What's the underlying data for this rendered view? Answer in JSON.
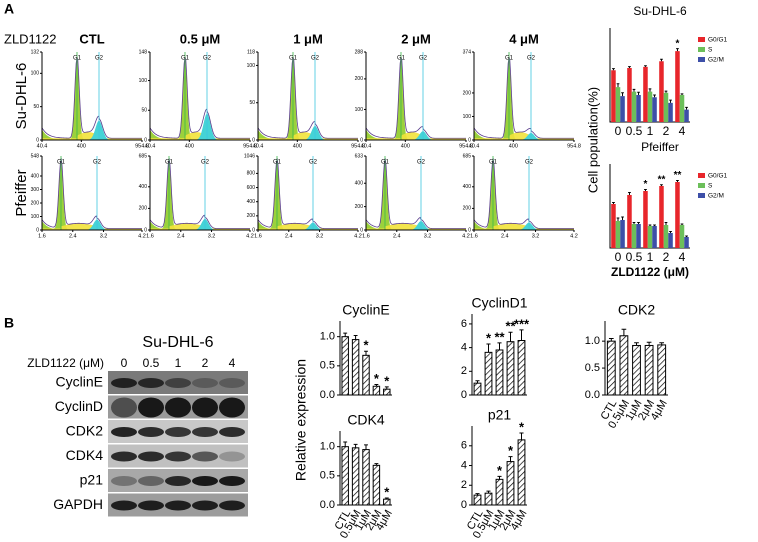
{
  "panel_labels": [
    "A",
    "B"
  ],
  "flow": {
    "drug_label": "ZLD1122",
    "doses": [
      "CTL",
      "0.5 μM",
      "1 μM",
      "2 μM",
      "4 μM"
    ],
    "rows": [
      {
        "name": "Su-DHL-6",
        "xticks": [
          "40.4",
          "400",
          "954.8"
        ],
        "peaks": [
          "G1",
          "G2"
        ],
        "yticks": [
          [
            "0",
            "50",
            "100",
            "132"
          ],
          [
            "0",
            "50",
            "100",
            "148"
          ],
          [
            "0",
            "50",
            "100",
            "118"
          ],
          [
            "0",
            "100",
            "200",
            "288"
          ],
          [
            "0",
            "100",
            "200",
            "374"
          ]
        ]
      },
      {
        "name": "Pfeiffer",
        "xticks": [
          "1.6",
          "2.4",
          "3.2",
          "4.2"
        ],
        "peaks": [
          "G1",
          "G2"
        ],
        "yticks": [
          [
            "0",
            "100",
            "200",
            "300",
            "400",
            "548"
          ],
          [
            "0",
            "200",
            "400",
            "685"
          ],
          [
            "0",
            "200",
            "400",
            "600",
            "800",
            "1046"
          ],
          [
            "0",
            "200",
            "400",
            "633"
          ],
          [
            "0",
            "200",
            "400",
            "685"
          ]
        ]
      }
    ]
  },
  "western": {
    "title": "Su-DHL-6",
    "dose_label": "ZLD1122 (μM)",
    "doses": [
      "0",
      "0.5",
      "1",
      "2",
      "4"
    ],
    "proteins": [
      "CyclinE",
      "CyclinD",
      "CDK2",
      "CDK4",
      "p21",
      "GAPDH"
    ]
  },
  "chart_data": [
    {
      "type": "bar",
      "title": "Su-DHL-6",
      "categories": [
        "0",
        "0.5",
        "1",
        "2",
        "4"
      ],
      "ylim": [
        0,
        80
      ],
      "y_label": "Cell population(%)",
      "series": [
        {
          "name": "G0/G1",
          "color": "#e8262b",
          "values": [
            46,
            48,
            49,
            54,
            63
          ],
          "errors": [
            1.5,
            1.2,
            1.0,
            1.8,
            2.2
          ],
          "significance": [
            null,
            null,
            null,
            null,
            "*"
          ]
        },
        {
          "name": "S",
          "color": "#6cbf5a",
          "values": [
            31,
            27,
            27,
            26,
            24
          ],
          "errors": [
            3,
            2,
            2.5,
            1.5,
            1
          ]
        },
        {
          "name": "G2/M",
          "color": "#3d4fa8",
          "values": [
            23,
            24,
            22,
            17,
            11
          ],
          "errors": [
            3,
            2.5,
            2,
            2.5,
            2
          ]
        }
      ]
    },
    {
      "type": "bar",
      "title": "Pfeiffer",
      "categories": [
        "0",
        "0.5",
        "1",
        "2",
        "4"
      ],
      "ylim": [
        0,
        80
      ],
      "x_label": "ZLD1122 (μM)",
      "series": [
        {
          "name": "G0/G1",
          "color": "#e8262b",
          "values": [
            44,
            53,
            57,
            62,
            66
          ],
          "errors": [
            1.5,
            2.5,
            1.5,
            1.2,
            1.5
          ],
          "significance": [
            null,
            null,
            "*",
            "**",
            "**"
          ]
        },
        {
          "name": "S",
          "color": "#6cbf5a",
          "values": [
            27,
            24,
            22,
            23,
            23
          ],
          "errors": [
            3,
            1.5,
            1,
            2.5,
            1
          ]
        },
        {
          "name": "G2/M",
          "color": "#3d4fa8",
          "values": [
            28,
            24,
            22,
            15,
            11
          ],
          "errors": [
            3,
            1.5,
            1,
            1.5,
            1
          ]
        }
      ]
    },
    {
      "type": "bar",
      "title": "CyclinE",
      "hatch": true,
      "y_label": "Relative expression",
      "values": [
        1.0,
        0.95,
        0.68,
        0.15,
        0.1
      ],
      "errors": [
        0.06,
        0.07,
        0.07,
        0.03,
        0.04
      ],
      "significance": [
        null,
        null,
        "*",
        "*",
        "*"
      ],
      "ylim": [
        0,
        1.2
      ],
      "yticks": [
        {
          "value": 0,
          "label": "0.0"
        },
        {
          "value": 0.5,
          "label": "0.5"
        },
        {
          "value": 1,
          "label": "1.0"
        }
      ]
    },
    {
      "type": "bar",
      "title": "CyclinD1",
      "hatch": true,
      "values": [
        1.0,
        3.6,
        3.8,
        4.5,
        4.6
      ],
      "errors": [
        0.2,
        0.7,
        0.6,
        0.8,
        0.9
      ],
      "significance": [
        null,
        "*",
        "**",
        "**",
        "***"
      ],
      "ylim": [
        0,
        6.5
      ],
      "yticks": [
        0,
        2,
        4,
        6
      ]
    },
    {
      "type": "bar",
      "title": "CDK2",
      "hatch": true,
      "categories": [
        "CTL",
        "0.5μM",
        "1μM",
        "2μM",
        "4μM"
      ],
      "values": [
        1.0,
        1.1,
        0.92,
        0.92,
        0.93
      ],
      "errors": [
        0.05,
        0.12,
        0.05,
        0.06,
        0.04
      ],
      "ylim": [
        0,
        1.3
      ],
      "yticks": [
        {
          "value": 0,
          "label": "0.0"
        },
        {
          "value": 0.5,
          "label": "0.5"
        },
        {
          "value": 1,
          "label": "1.0"
        }
      ]
    },
    {
      "type": "bar",
      "title": "CDK4",
      "hatch": true,
      "categories": [
        "CTL",
        "0.5μM",
        "1μM",
        "2μM",
        "4μM"
      ],
      "values": [
        1.0,
        0.98,
        0.95,
        0.68,
        0.1
      ],
      "errors": [
        0.08,
        0.06,
        0.08,
        0.03,
        0.02
      ],
      "significance": [
        null,
        null,
        null,
        null,
        "*"
      ],
      "ylim": [
        0,
        1.2
      ],
      "yticks": [
        {
          "value": 0,
          "label": "0.0"
        },
        {
          "value": 0.5,
          "label": "0.5"
        },
        {
          "value": 1,
          "label": "1.0"
        }
      ]
    },
    {
      "type": "bar",
      "title": "p21",
      "hatch": true,
      "categories": [
        "CTL",
        "0.5μM",
        "1μM",
        "2μM",
        "4μM"
      ],
      "values": [
        1.0,
        1.2,
        2.6,
        4.4,
        6.6
      ],
      "errors": [
        0.15,
        0.2,
        0.3,
        0.5,
        0.7
      ],
      "significance": [
        null,
        null,
        "*",
        "*",
        "*"
      ],
      "ylim": [
        0,
        7.6
      ],
      "yticks": [
        0,
        2,
        4,
        6
      ]
    }
  ]
}
